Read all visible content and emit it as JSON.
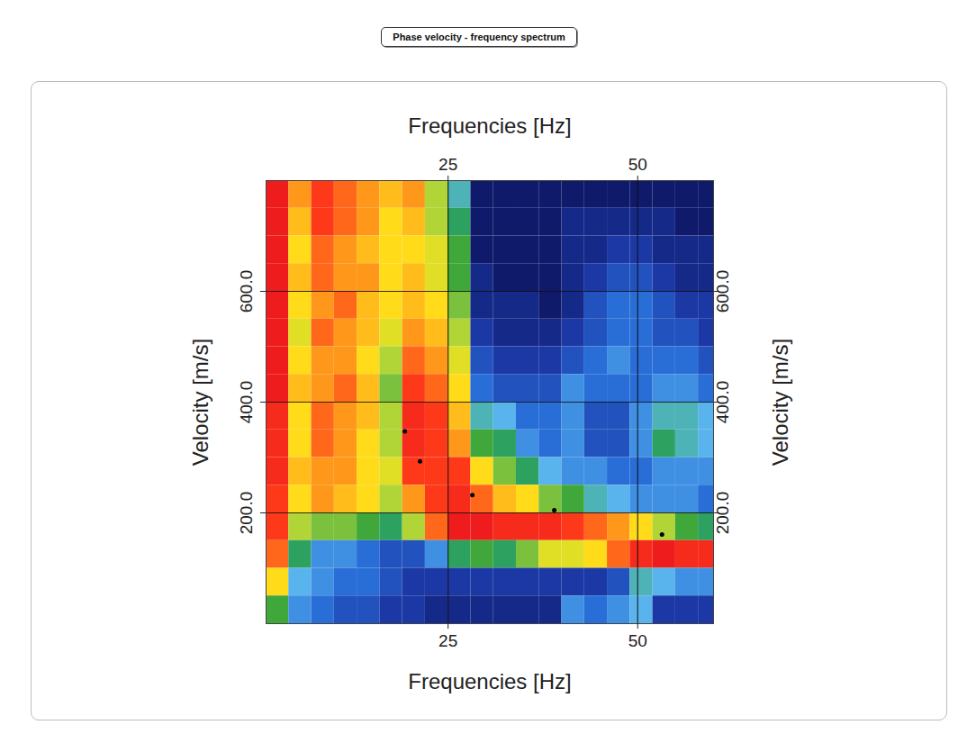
{
  "chart_data": {
    "type": "heatmap",
    "title": "Phase velocity - frequency spectrum",
    "x_label": "Frequencies [Hz]",
    "y_label": "Velocity [m/s]",
    "xlim": [
      1,
      60
    ],
    "ylim": [
      0,
      800
    ],
    "xticks": [
      25,
      50
    ],
    "yticks": [
      {
        "value": 200,
        "label": "200.0"
      },
      {
        "value": 400,
        "label": "400.0"
      },
      {
        "value": 600,
        "label": "600.0"
      }
    ],
    "grid": true,
    "frequency_bins": [
      1,
      4,
      7,
      10,
      13,
      16,
      19,
      22,
      25,
      28,
      31,
      34,
      37,
      40,
      43,
      46,
      49,
      52,
      55,
      58,
      61
    ],
    "velocity_bins": [
      800,
      750,
      700,
      650,
      600,
      550,
      500,
      450,
      400,
      350,
      300,
      250,
      200,
      150,
      100,
      50,
      0
    ],
    "cells": [
      [
        1.0,
        0.8,
        0.9,
        0.85,
        0.8,
        0.75,
        0.8,
        0.6,
        0.4,
        0.05,
        0.05,
        0.05,
        0.05,
        0.05,
        0.05,
        0.05,
        0.05,
        0.05,
        0.05,
        0.05
      ],
      [
        1.0,
        0.75,
        0.9,
        0.85,
        0.8,
        0.7,
        0.75,
        0.6,
        0.45,
        0.05,
        0.05,
        0.05,
        0.05,
        0.1,
        0.1,
        0.1,
        0.1,
        0.1,
        0.05,
        0.05
      ],
      [
        1.0,
        0.7,
        0.85,
        0.8,
        0.75,
        0.7,
        0.7,
        0.65,
        0.5,
        0.05,
        0.05,
        0.05,
        0.05,
        0.1,
        0.1,
        0.15,
        0.15,
        0.1,
        0.1,
        0.1
      ],
      [
        1.0,
        0.75,
        0.85,
        0.8,
        0.8,
        0.7,
        0.75,
        0.65,
        0.5,
        0.1,
        0.05,
        0.05,
        0.05,
        0.1,
        0.15,
        0.2,
        0.2,
        0.15,
        0.1,
        0.1
      ],
      [
        1.0,
        0.7,
        0.8,
        0.85,
        0.75,
        0.7,
        0.75,
        0.7,
        0.55,
        0.1,
        0.1,
        0.1,
        0.05,
        0.1,
        0.2,
        0.25,
        0.25,
        0.2,
        0.15,
        0.15
      ],
      [
        1.0,
        0.65,
        0.85,
        0.8,
        0.75,
        0.65,
        0.8,
        0.75,
        0.6,
        0.15,
        0.1,
        0.1,
        0.1,
        0.15,
        0.2,
        0.25,
        0.25,
        0.2,
        0.2,
        0.15
      ],
      [
        1.0,
        0.7,
        0.8,
        0.8,
        0.7,
        0.6,
        0.85,
        0.8,
        0.65,
        0.2,
        0.15,
        0.15,
        0.15,
        0.2,
        0.25,
        0.3,
        0.25,
        0.25,
        0.25,
        0.2
      ],
      [
        1.0,
        0.75,
        0.8,
        0.85,
        0.75,
        0.55,
        0.9,
        0.85,
        0.7,
        0.25,
        0.2,
        0.2,
        0.2,
        0.3,
        0.25,
        0.25,
        0.25,
        0.3,
        0.3,
        0.25
      ],
      [
        0.95,
        0.7,
        0.85,
        0.8,
        0.75,
        0.6,
        0.95,
        0.9,
        0.75,
        0.4,
        0.35,
        0.25,
        0.25,
        0.3,
        0.2,
        0.2,
        0.3,
        0.4,
        0.4,
        0.35
      ],
      [
        0.95,
        0.7,
        0.85,
        0.8,
        0.7,
        0.6,
        0.95,
        0.9,
        0.8,
        0.5,
        0.45,
        0.3,
        0.25,
        0.3,
        0.2,
        0.2,
        0.3,
        0.45,
        0.4,
        0.35
      ],
      [
        0.95,
        0.75,
        0.8,
        0.8,
        0.7,
        0.65,
        0.9,
        0.9,
        0.9,
        0.7,
        0.55,
        0.45,
        0.35,
        0.3,
        0.3,
        0.25,
        0.25,
        0.3,
        0.3,
        0.3
      ],
      [
        0.9,
        0.7,
        0.8,
        0.75,
        0.7,
        0.6,
        0.8,
        0.9,
        0.95,
        0.85,
        0.75,
        0.7,
        0.55,
        0.5,
        0.4,
        0.35,
        0.3,
        0.3,
        0.3,
        0.25
      ],
      [
        0.9,
        0.6,
        0.55,
        0.55,
        0.5,
        0.45,
        0.6,
        0.85,
        1.0,
        1.0,
        0.95,
        0.95,
        0.95,
        0.9,
        0.85,
        0.8,
        0.7,
        0.6,
        0.5,
        0.45
      ],
      [
        0.85,
        0.45,
        0.3,
        0.3,
        0.25,
        0.2,
        0.2,
        0.3,
        0.45,
        0.5,
        0.45,
        0.55,
        0.65,
        0.65,
        0.7,
        0.85,
        0.95,
        1.0,
        0.95,
        0.95
      ],
      [
        0.7,
        0.35,
        0.3,
        0.25,
        0.25,
        0.2,
        0.15,
        0.15,
        0.15,
        0.15,
        0.15,
        0.15,
        0.15,
        0.15,
        0.15,
        0.2,
        0.4,
        0.35,
        0.3,
        0.3
      ],
      [
        0.5,
        0.3,
        0.25,
        0.2,
        0.2,
        0.15,
        0.15,
        0.1,
        0.1,
        0.1,
        0.1,
        0.1,
        0.1,
        0.3,
        0.25,
        0.3,
        0.35,
        0.15,
        0.15,
        0.15
      ]
    ],
    "points": {
      "x": [
        19.3,
        21.3,
        28.2,
        39,
        53.2
      ],
      "y": [
        347,
        293,
        232,
        205,
        161
      ],
      "color": "#000000",
      "marker": "circle"
    }
  }
}
